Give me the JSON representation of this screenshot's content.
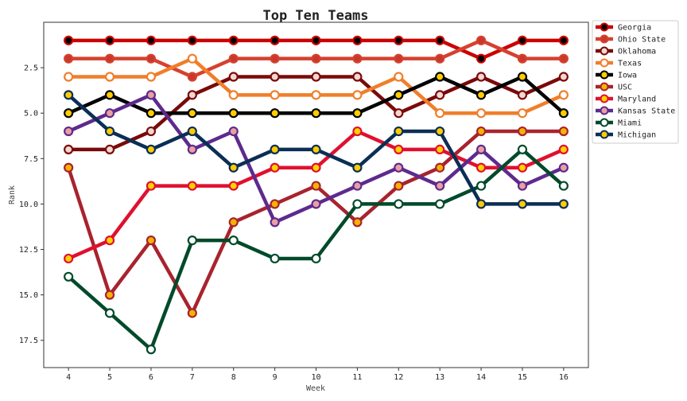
{
  "chart_data": {
    "type": "line",
    "title": "Top Ten Teams",
    "xlabel": "Week",
    "ylabel": "Rank",
    "x": [
      4,
      5,
      6,
      7,
      8,
      9,
      10,
      11,
      12,
      13,
      14,
      15,
      16
    ],
    "xlim": [
      3.4,
      16.6
    ],
    "ylim": [
      19,
      0
    ],
    "y_inverted": true,
    "y_ticks": [
      "2.5",
      "5.0",
      "7.5",
      "10.0",
      "12.5",
      "15.0",
      "17.5"
    ],
    "legend_position": "outside-right",
    "grid": false,
    "series": [
      {
        "name": "Georgia",
        "line_color": "#cc0000",
        "marker_fill": "#000000",
        "values": [
          1,
          1,
          1,
          1,
          1,
          1,
          1,
          1,
          1,
          1,
          2,
          1,
          1
        ]
      },
      {
        "name": "Ohio State",
        "line_color": "#d6412f",
        "marker_fill": "#c8382b",
        "values": [
          2,
          2,
          2,
          3,
          2,
          2,
          2,
          2,
          2,
          2,
          1,
          2,
          2
        ]
      },
      {
        "name": "Oklahoma",
        "line_color": "#7a0a0a",
        "marker_fill": "#f2d8d0",
        "values": [
          7,
          7,
          6,
          4,
          3,
          3,
          3,
          3,
          5,
          4,
          3,
          4,
          3
        ]
      },
      {
        "name": "Texas",
        "line_color": "#f07e2a",
        "marker_fill": "#ffffff",
        "values": [
          3,
          3,
          3,
          2,
          4,
          4,
          4,
          4,
          3,
          5,
          5,
          5,
          4
        ]
      },
      {
        "name": "Iowa",
        "line_color": "#000000",
        "marker_fill": "#ffcd00",
        "values": [
          5,
          4,
          5,
          5,
          5,
          5,
          5,
          5,
          4,
          3,
          4,
          3,
          5
        ]
      },
      {
        "name": "USC",
        "line_color": "#a8232e",
        "marker_fill": "#f5b400",
        "values": [
          8,
          15,
          12,
          16,
          11,
          10,
          9,
          11,
          9,
          8,
          6,
          6,
          6
        ]
      },
      {
        "name": "Maryland",
        "line_color": "#e0102f",
        "marker_fill": "#ffd200",
        "values": [
          13,
          12,
          9,
          9,
          9,
          8,
          8,
          6,
          7,
          7,
          8,
          8,
          7
        ]
      },
      {
        "name": "Kansas State",
        "line_color": "#5e2a8e",
        "marker_fill": "#e9a0a0",
        "values": [
          6,
          5,
          4,
          7,
          6,
          11,
          10,
          9,
          8,
          9,
          7,
          9,
          8
        ]
      },
      {
        "name": "Miami",
        "line_color": "#014a2a",
        "marker_fill": "#ffffff",
        "values": [
          14,
          16,
          18,
          12,
          12,
          13,
          13,
          10,
          10,
          10,
          9,
          7,
          9
        ]
      },
      {
        "name": "Michigan",
        "line_color": "#0b2e55",
        "marker_fill": "#ffcb05",
        "values": [
          4,
          6,
          7,
          6,
          8,
          7,
          7,
          8,
          6,
          6,
          10,
          10,
          10
        ]
      }
    ]
  }
}
